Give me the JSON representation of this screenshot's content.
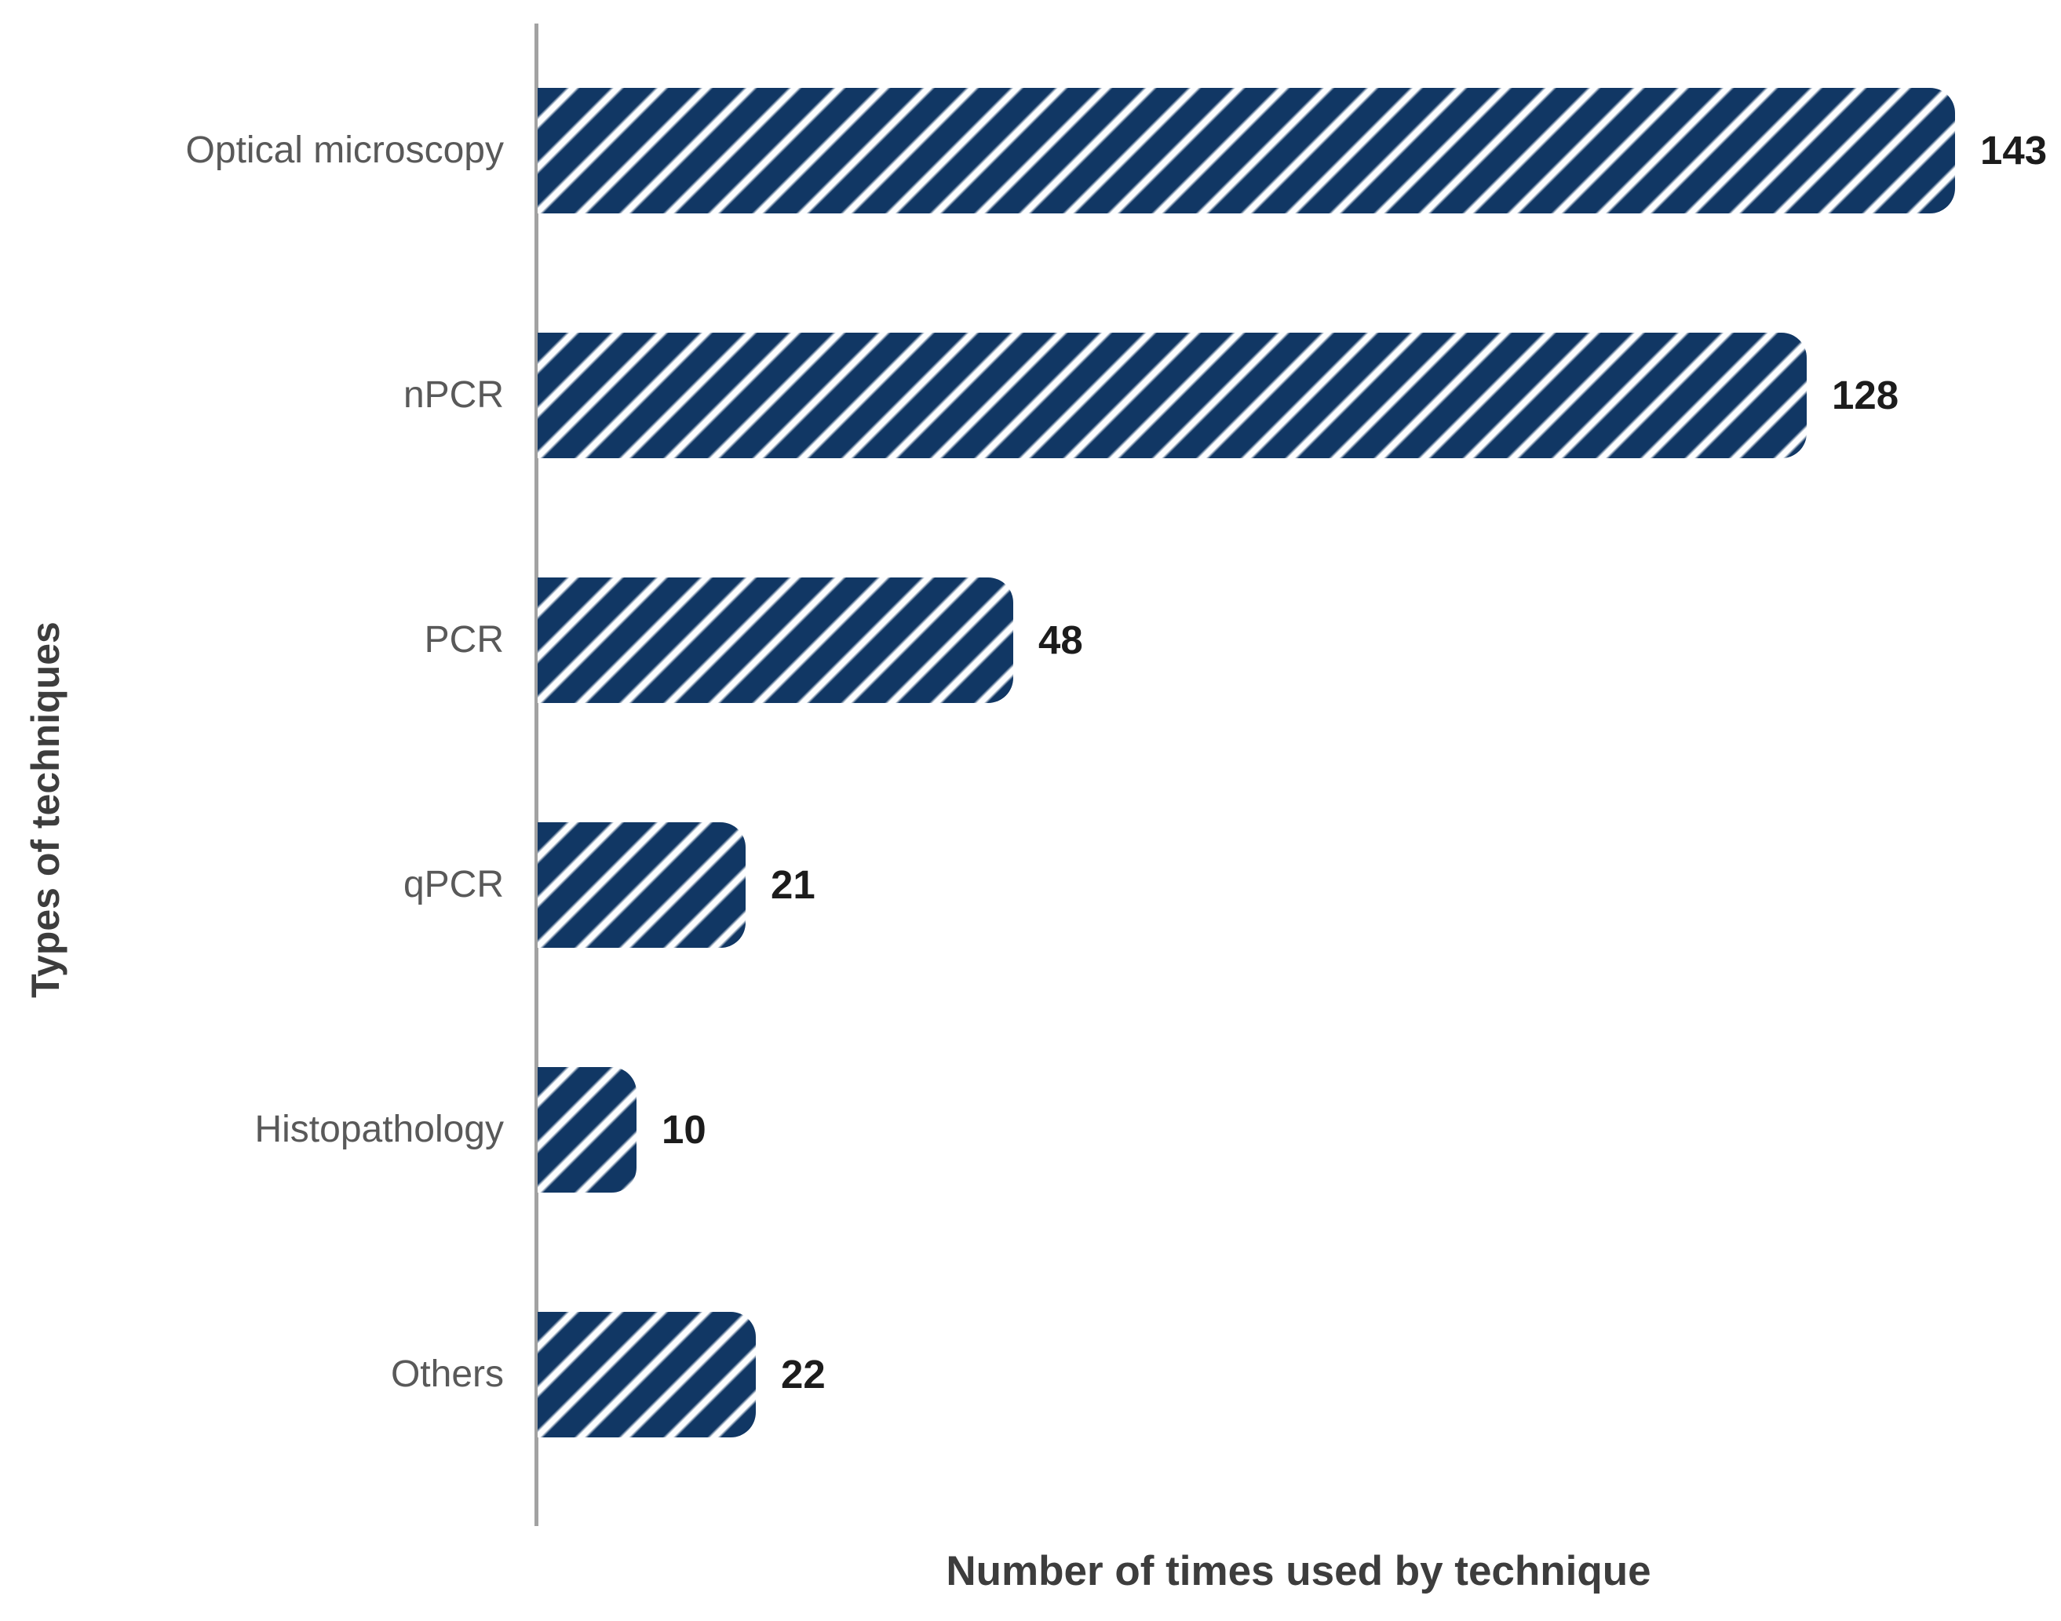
{
  "chart_data": {
    "type": "bar",
    "orientation": "horizontal",
    "categories": [
      "Optical microscopy",
      "nPCR",
      "PCR",
      "qPCR",
      "Histopathology",
      "Others"
    ],
    "values": [
      143,
      128,
      48,
      21,
      10,
      22
    ],
    "xlabel": "Number of times used by technique",
    "ylabel": "Types of techniques",
    "xlim": [
      0,
      150
    ],
    "grid": false,
    "legend": "none",
    "bar_color": "#113764",
    "hatch_pattern": "diagonal-forward-slash-white-stripes",
    "hatch_stripe_color": "#ffffff",
    "axis_line_color": "#a2a2a2",
    "category_label_color": "#595959",
    "value_label_color": "#1c1c1c",
    "value_labels_shown": true
  }
}
